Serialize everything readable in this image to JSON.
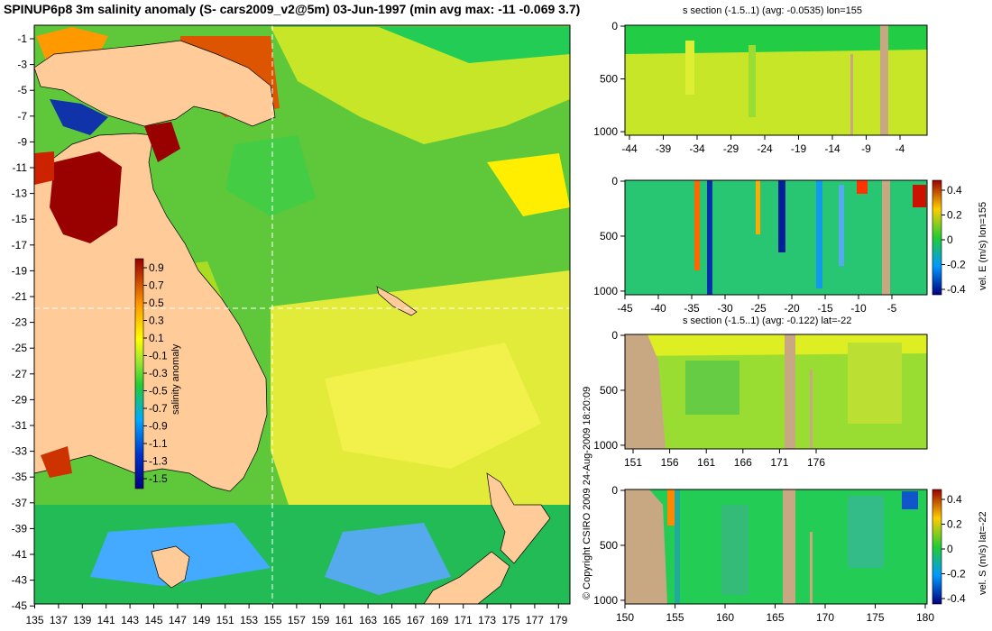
{
  "title": "SPINUP6p8 3m salinity anomaly (S- cars2009_v2@5m) 03-Jun-1997 (min avg max: -11 -0.069 3.7)",
  "copyright": "© Copyright CSIRO 2009    24-Aug-2009 18:20:09",
  "colors": {
    "land": "#ffcc99",
    "landSection": "#c8a882",
    "sea": "#22cc33",
    "guide": "#ffffff"
  },
  "chart_data": [
    {
      "type": "heatmap",
      "name": "salinity-map",
      "title": "",
      "y_ticks": [
        "-1",
        "-3",
        "-5",
        "-7",
        "-9",
        "-11",
        "-13",
        "-15",
        "-17",
        "-19",
        "-21",
        "-23",
        "-25",
        "-27",
        "-29",
        "-31",
        "-33",
        "-35",
        "-37",
        "-39",
        "-41",
        "-43",
        "-45"
      ],
      "x_ticks": [
        "135",
        "137",
        "139",
        "141",
        "143",
        "145",
        "147",
        "149",
        "151",
        "153",
        "155",
        "157",
        "159",
        "161",
        "163",
        "165",
        "167",
        "169",
        "171",
        "173",
        "175",
        "177",
        "179"
      ],
      "xlim": [
        135,
        180
      ],
      "ylim": [
        -45,
        0
      ],
      "section_lon": 155,
      "section_lat": -22,
      "colorbar": {
        "label": "salinity anomaly",
        "ticks": [
          "0.9",
          "0.7",
          "0.5",
          "0.3",
          "0.1",
          "-0.1",
          "-0.3",
          "-0.5",
          "-0.7",
          "-0.9",
          "-1.1",
          "-1.3",
          "-1.5"
        ],
        "range": [
          -1.5,
          1.0
        ]
      }
    },
    {
      "type": "heatmap",
      "name": "s-section-lon155",
      "title": "s section (-1.5..1) (avg: -0.0535) lon=155",
      "x_ticks": [
        "-44",
        "-39",
        "-34",
        "-29",
        "-24",
        "-19",
        "-14",
        "-9",
        "-4"
      ],
      "y_ticks": [
        "0",
        "500",
        "1000"
      ]
    },
    {
      "type": "heatmap",
      "name": "vel-e-section-lon155",
      "title": "",
      "x_ticks": [
        "-45",
        "-40",
        "-35",
        "-30",
        "-25",
        "-20",
        "-15",
        "-10",
        "-5"
      ],
      "y_ticks": [
        "0",
        "500",
        "1000"
      ],
      "colorbar": {
        "label": "vel. E (m/s) lon=155",
        "ticks": [
          "0.4",
          "0.2",
          "0",
          "-0.2",
          "-0.4"
        ]
      }
    },
    {
      "type": "heatmap",
      "name": "s-section-lat-22",
      "title": "s section (-1.5..1) (avg: -0.122) lat=-22",
      "x_ticks": [
        "151",
        "156",
        "161",
        "166",
        "171",
        "176"
      ],
      "y_ticks": [
        "0",
        "500",
        "1000"
      ]
    },
    {
      "type": "heatmap",
      "name": "vel-s-section-lat-22",
      "title": "",
      "x_ticks": [
        "150",
        "155",
        "160",
        "165",
        "170",
        "175",
        "180"
      ],
      "y_ticks": [
        "0",
        "500",
        "1000"
      ],
      "colorbar": {
        "label": "vel. S (m/s) lat=-22",
        "ticks": [
          "0.4",
          "0.2",
          "0",
          "-0.2",
          "-0.4"
        ]
      }
    }
  ]
}
